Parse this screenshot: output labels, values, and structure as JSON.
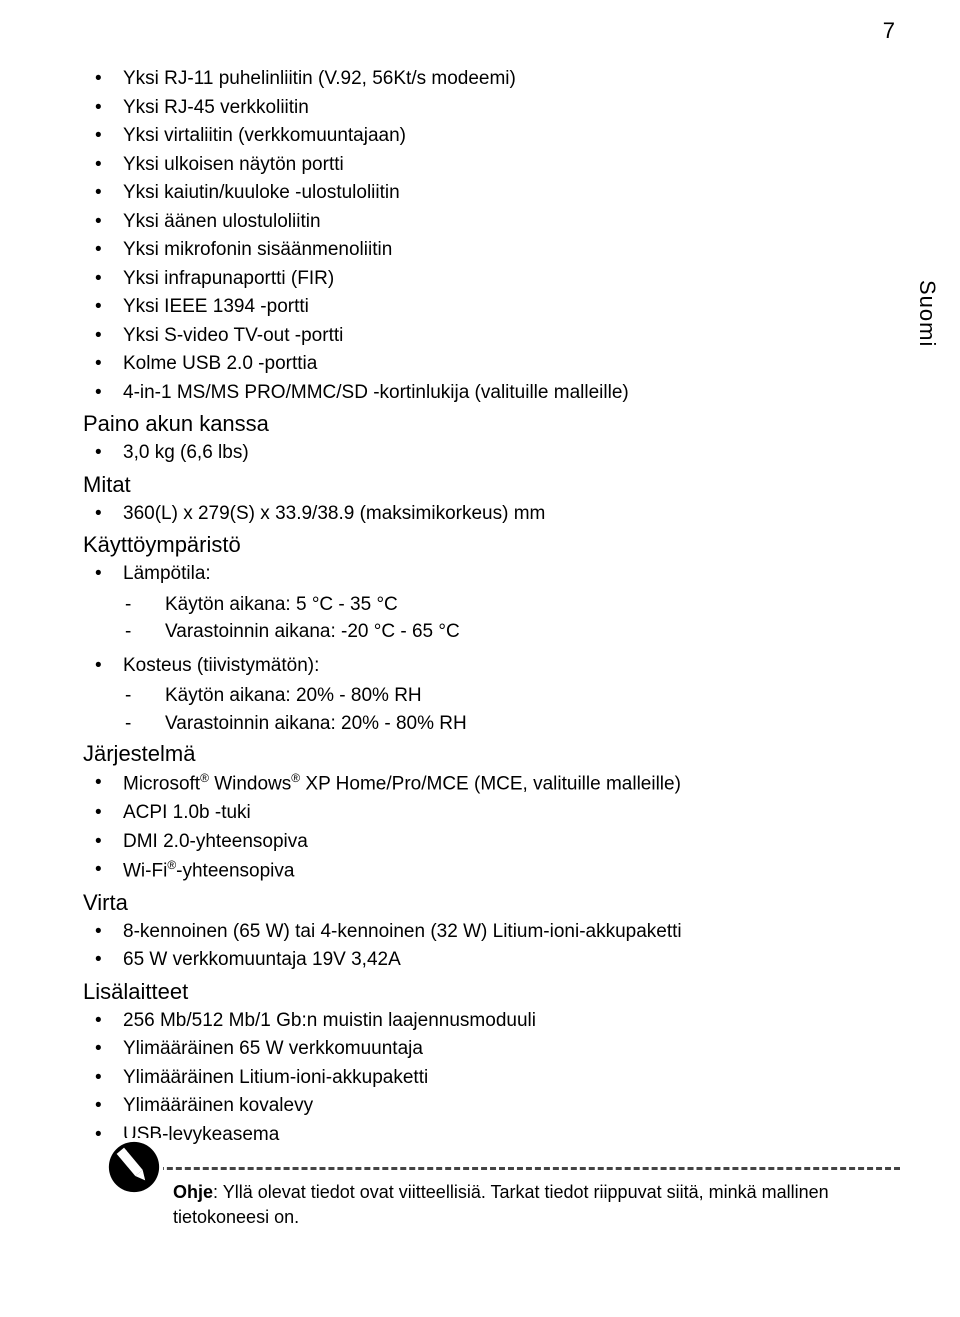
{
  "page_number": "7",
  "side_label": "Suomi",
  "io_items": [
    "Yksi RJ-11 puhelinliitin (V.92, 56Kt/s modeemi)",
    "Yksi RJ-45 verkkoliitin",
    "Yksi virtaliitin (verkkomuuntajaan)",
    "Yksi ulkoisen näytön portti",
    "Yksi kaiutin/kuuloke -ulostuloliitin",
    "Yksi äänen ulostuloliitin",
    "Yksi mikrofonin sisäänmenoliitin",
    "Yksi infrapunaportti (FIR)",
    "Yksi IEEE 1394 -portti",
    "Yksi S-video TV-out -portti",
    "Kolme USB 2.0 -porttia",
    "4-in-1 MS/MS PRO/MMC/SD -kortinlukija (valituille malleille)"
  ],
  "sections": {
    "paino": {
      "heading": "Paino akun kanssa",
      "items": [
        "3,0 kg (6,6 lbs)"
      ]
    },
    "mitat": {
      "heading": "Mitat",
      "items": [
        "360(L) x 279(S) x 33.9/38.9 (maksimikorkeus) mm"
      ]
    },
    "kayttoymparisto": {
      "heading": "Käyttöympäristö",
      "temp_label": "Lämpötila:",
      "temp_items": [
        "Käytön aikana: 5 °C - 35 °C",
        "Varastoinnin aikana: -20 °C - 65 °C"
      ],
      "humidity_label": "Kosteus (tiivistymätön):",
      "humidity_items": [
        "Käytön aikana: 20% - 80% RH",
        "Varastoinnin aikana: 20% - 80% RH"
      ]
    },
    "jarjestelma": {
      "heading": "Järjestelmä",
      "item0_html": "Microsoft<sup>®</sup> Windows<sup>®</sup> XP Home/Pro/MCE (MCE, valituille malleille)",
      "items": [
        "ACPI 1.0b -tuki",
        "DMI 2.0-yhteensopiva"
      ],
      "item_last_html": "Wi-Fi<sup>®</sup>-yhteensopiva"
    },
    "virta": {
      "heading": "Virta",
      "items": [
        "8-kennoinen (65 W) tai 4-kennoinen (32 W) Litium-ioni-akkupaketti",
        "65 W verkkomuuntaja 19V 3,42A"
      ]
    },
    "lisalaitteet": {
      "heading": "Lisälaitteet",
      "items": [
        "256 Mb/512 Mb/1 Gb:n muistin laajennusmoduuli",
        "Ylimääräinen 65 W verkkomuuntaja",
        "Ylimääräinen Litium-ioni-akkupaketti",
        "Ylimääräinen kovalevy",
        "USB-levykeasema"
      ]
    }
  },
  "note": {
    "label": "Ohje",
    "text": ": Yllä olevat tiedot ovat viitteellisiä. Tarkat tiedot riippuvat siitä, minkä mallinen tietokoneesi on."
  }
}
